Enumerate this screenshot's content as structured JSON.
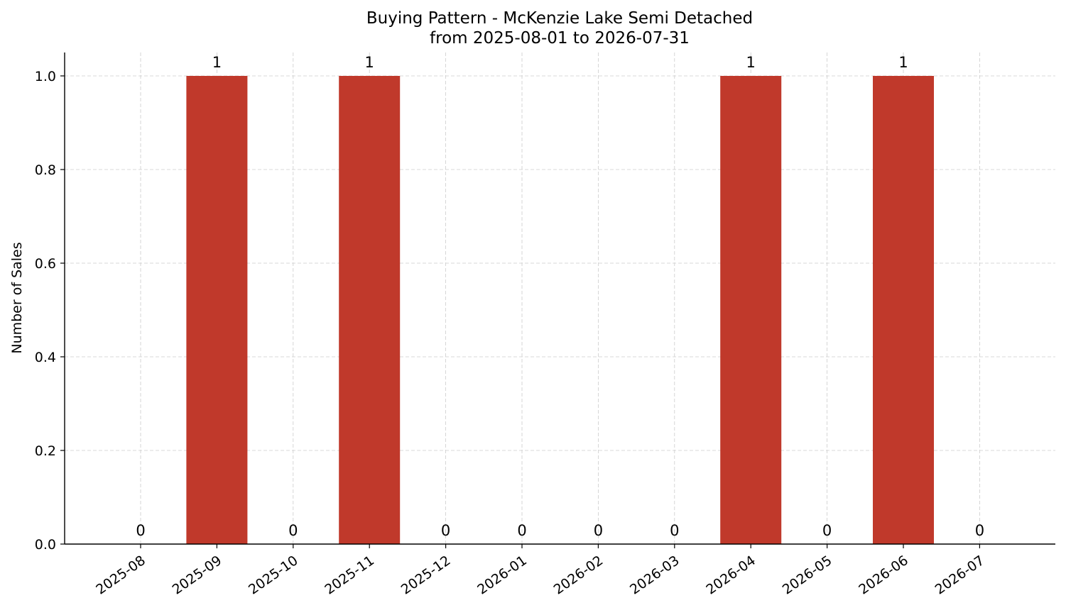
{
  "chart_data": {
    "type": "bar",
    "title": "Buying Pattern - McKenzie Lake Semi Detached",
    "subtitle": "from 2025-08-01 to 2026-07-31",
    "xlabel": "",
    "ylabel": "Number of Sales",
    "categories": [
      "2025-08",
      "2025-09",
      "2025-10",
      "2025-11",
      "2025-12",
      "2026-01",
      "2026-02",
      "2026-03",
      "2026-04",
      "2026-05",
      "2026-06",
      "2026-07"
    ],
    "values": [
      0,
      1,
      0,
      1,
      0,
      0,
      0,
      0,
      1,
      0,
      1,
      0
    ],
    "data_labels": [
      "0",
      "1",
      "0",
      "1",
      "0",
      "0",
      "0",
      "0",
      "1",
      "0",
      "1",
      "0"
    ],
    "ylim": [
      0,
      1.05
    ],
    "yticks": [
      0.0,
      0.2,
      0.4,
      0.6,
      0.8,
      1.0
    ],
    "ytick_labels": [
      "0.0",
      "0.2",
      "0.4",
      "0.6",
      "0.8",
      "1.0"
    ],
    "bar_color": "#c0392b",
    "grid": true,
    "legend": "none"
  }
}
